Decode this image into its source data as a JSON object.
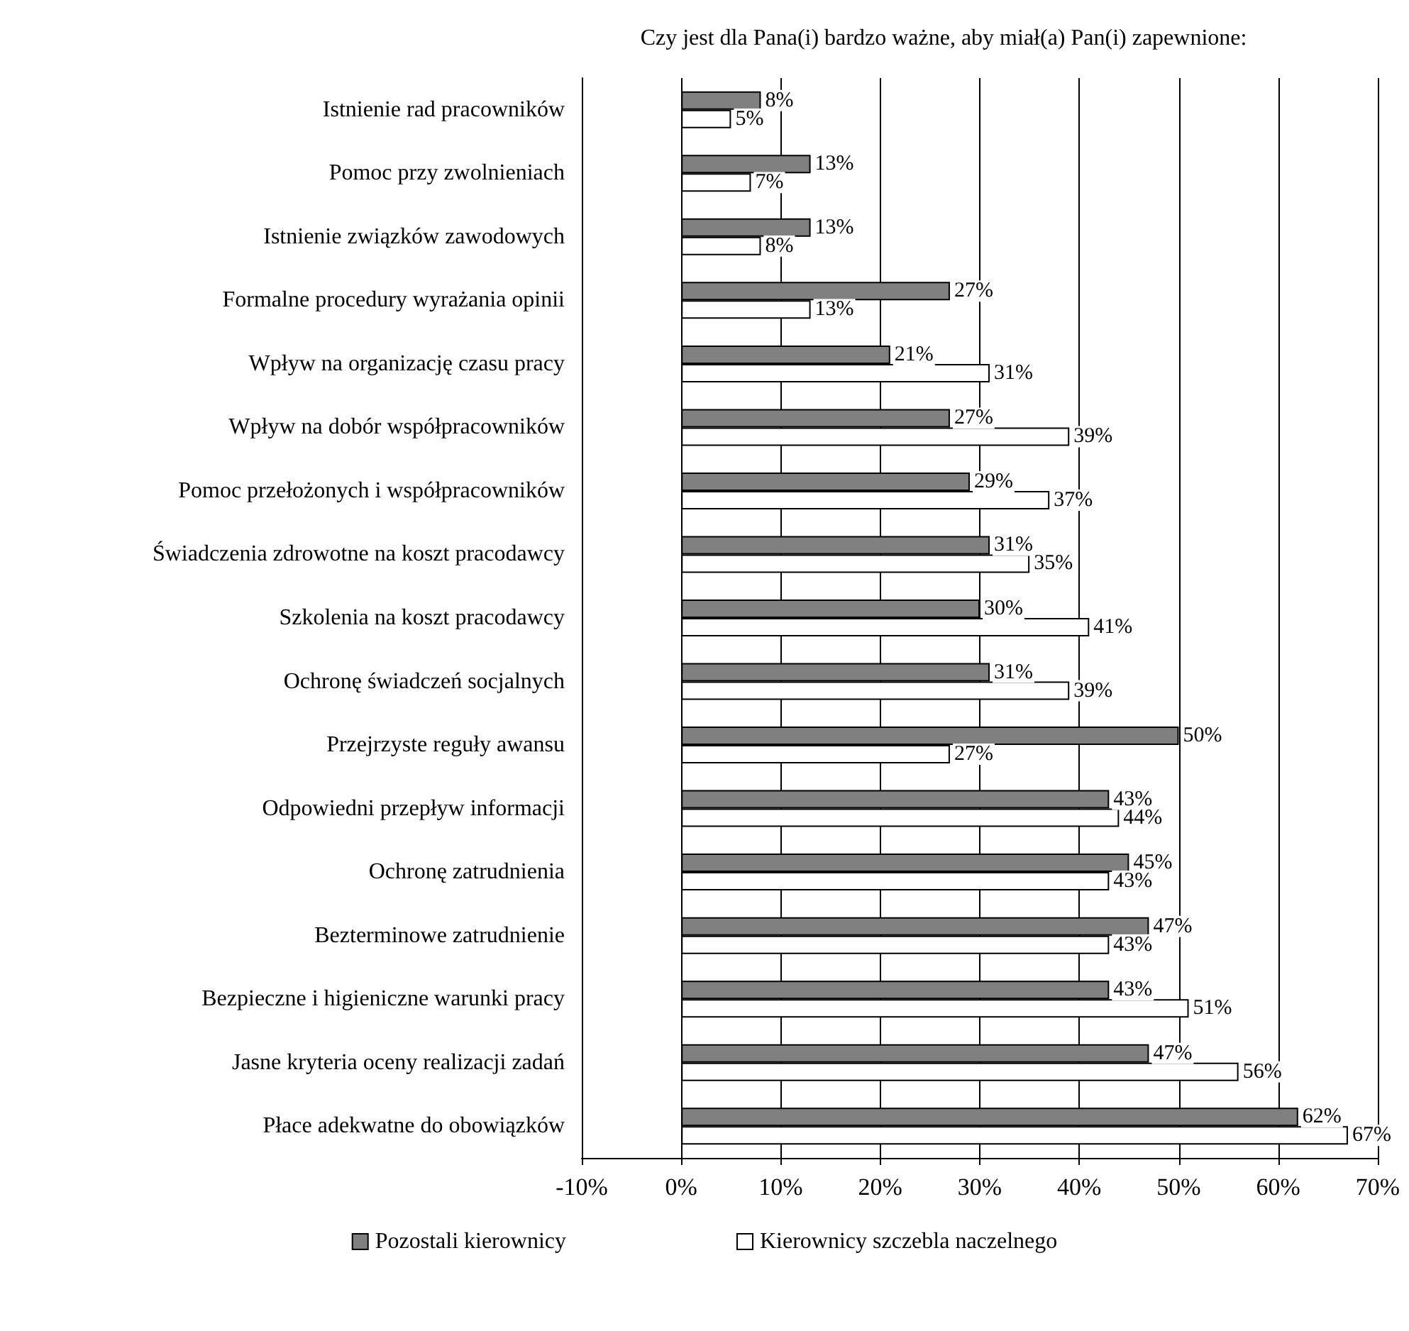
{
  "chart_data": {
    "type": "bar",
    "orientation": "horizontal",
    "title": "Czy jest dla Pana(i) bardzo ważne, aby miał(a) Pan(i) zapewnione:",
    "categories": [
      "Istnienie rad pracowników",
      "Pomoc przy zwolnieniach",
      "Istnienie związków zawodowych",
      "Formalne procedury wyrażania opinii",
      "Wpływ na organizację czasu pracy",
      "Wpływ na dobór współpracowników",
      "Pomoc przełożonych i współpracowników",
      "Świadczenia zdrowotne na koszt pracodawcy",
      "Szkolenia na koszt pracodawcy",
      "Ochronę świadczeń socjalnych",
      "Przejrzyste reguły awansu",
      "Odpowiedni przepływ informacji",
      "Ochronę zatrudnienia",
      "Bezterminowe zatrudnienie",
      "Bezpieczne i higieniczne warunki pracy",
      "Jasne kryteria oceny realizacji zadań",
      "Płace adekwatne do obowiązków"
    ],
    "series": [
      {
        "name": "Pozostali kierownicy",
        "color": "#808080",
        "values": [
          8,
          13,
          13,
          27,
          21,
          27,
          29,
          31,
          30,
          31,
          50,
          43,
          45,
          47,
          43,
          47,
          62
        ],
        "value_labels": [
          "8%",
          "13%",
          "13%",
          "27%",
          "21%",
          "27%",
          "29%",
          "31%",
          "30%",
          "31%",
          "50%",
          "43%",
          "45%",
          "47%",
          "43%",
          "47%",
          "62%"
        ]
      },
      {
        "name": "Kierownicy szczebla naczelnego",
        "color": "#ffffff",
        "values": [
          5,
          7,
          8,
          13,
          31,
          39,
          37,
          35,
          41,
          39,
          27,
          44,
          43,
          43,
          51,
          56,
          67
        ],
        "value_labels": [
          "5%",
          "7%",
          "8%",
          "13%",
          "31%",
          "39%",
          "37%",
          "35%",
          "41%",
          "39%",
          "27%",
          "44%",
          "43%",
          "43%",
          "51%",
          "56%",
          "67%"
        ]
      }
    ],
    "xlim": [
      -10,
      70
    ],
    "xticks": [
      {
        "value": -10,
        "label": "-10%"
      },
      {
        "value": 0,
        "label": "0%"
      },
      {
        "value": 10,
        "label": "10%"
      },
      {
        "value": 20,
        "label": "20%"
      },
      {
        "value": 30,
        "label": "30%"
      },
      {
        "value": 40,
        "label": "40%"
      },
      {
        "value": 50,
        "label": "50%"
      },
      {
        "value": 60,
        "label": "60%"
      },
      {
        "value": 70,
        "label": "70%"
      }
    ],
    "grid": "x",
    "legend": "bottom"
  }
}
